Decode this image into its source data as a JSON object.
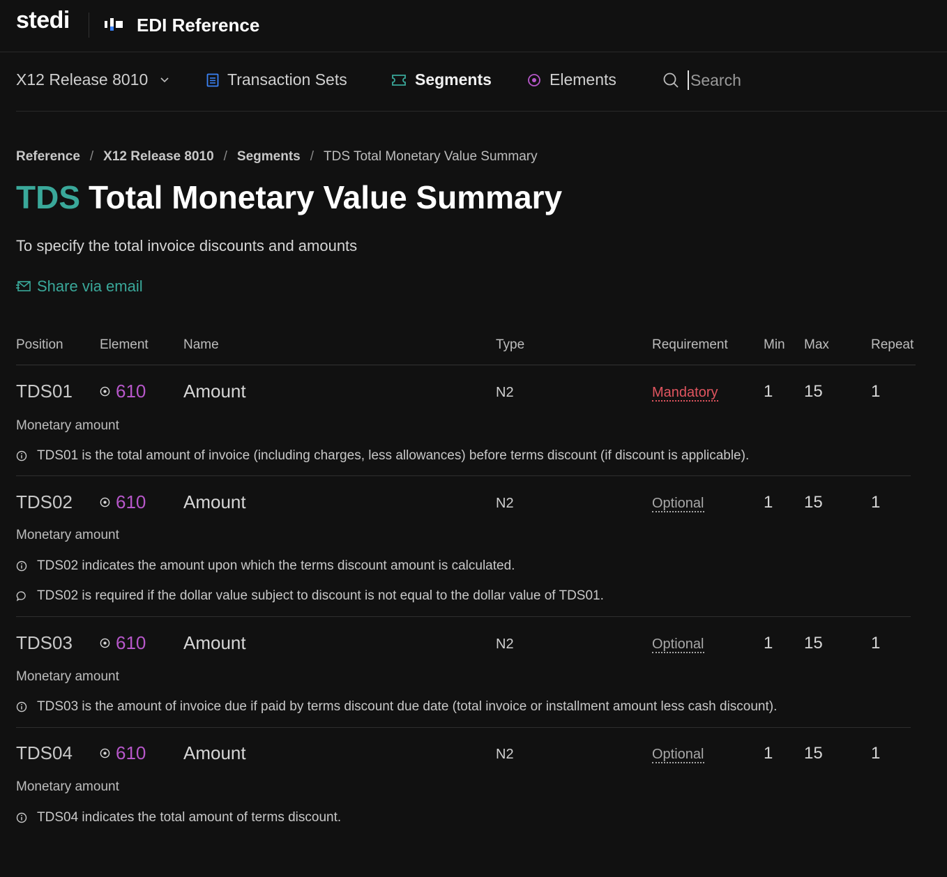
{
  "header": {
    "logo_text": "stedi",
    "app_title": "EDI Reference"
  },
  "nav": {
    "release_label": "X12 Release 8010",
    "transaction_sets_label": "Transaction Sets",
    "segments_label": "Segments",
    "elements_label": "Elements",
    "search_placeholder": "Search"
  },
  "breadcrumb": {
    "items": [
      "Reference",
      "X12 Release 8010",
      "Segments"
    ],
    "current": "TDS Total Monetary Value Summary"
  },
  "page": {
    "segment_code": "TDS",
    "segment_name": "Total Monetary Value Summary",
    "purpose": "To specify the total invoice discounts and amounts",
    "share_label": "Share via email"
  },
  "table": {
    "headers": {
      "position": "Position",
      "element": "Element",
      "name": "Name",
      "type": "Type",
      "requirement": "Requirement",
      "min": "Min",
      "max": "Max",
      "repeat": "Repeat"
    },
    "rows": [
      {
        "position": "TDS01",
        "element": "610",
        "name": "Amount",
        "type": "N2",
        "requirement": "Mandatory",
        "min": "1",
        "max": "15",
        "repeat": "1",
        "description": "Monetary amount",
        "notes": [
          {
            "kind": "info",
            "text": "TDS01 is the total amount of invoice (including charges, less allowances) before terms discount (if discount is applicable)."
          }
        ]
      },
      {
        "position": "TDS02",
        "element": "610",
        "name": "Amount",
        "type": "N2",
        "requirement": "Optional",
        "min": "1",
        "max": "15",
        "repeat": "1",
        "description": "Monetary amount",
        "notes": [
          {
            "kind": "info",
            "text": "TDS02 indicates the amount upon which the terms discount amount is calculated."
          },
          {
            "kind": "comment",
            "text": "TDS02 is required if the dollar value subject to discount is not equal to the dollar value of TDS01."
          }
        ]
      },
      {
        "position": "TDS03",
        "element": "610",
        "name": "Amount",
        "type": "N2",
        "requirement": "Optional",
        "min": "1",
        "max": "15",
        "repeat": "1",
        "description": "Monetary amount",
        "notes": [
          {
            "kind": "info",
            "text": "TDS03 is the amount of invoice due if paid by terms discount due date (total invoice or installment amount less cash discount)."
          }
        ]
      },
      {
        "position": "TDS04",
        "element": "610",
        "name": "Amount",
        "type": "N2",
        "requirement": "Optional",
        "min": "1",
        "max": "15",
        "repeat": "1",
        "description": "Monetary amount",
        "notes": [
          {
            "kind": "info",
            "text": "TDS04 indicates the total amount of terms discount."
          }
        ]
      }
    ]
  },
  "colors": {
    "background": "#111111",
    "accent_teal": "#3aa89a",
    "element_purple": "#b657c9",
    "mandatory_red": "#e0555f",
    "transaction_blue": "#3b82f6"
  },
  "icons": {
    "transaction_sets": "document-icon",
    "segments": "ticket-icon",
    "elements": "target-icon",
    "search": "search-icon",
    "share": "mail-icon",
    "note_info": "info-icon",
    "note_comment": "comment-icon"
  }
}
